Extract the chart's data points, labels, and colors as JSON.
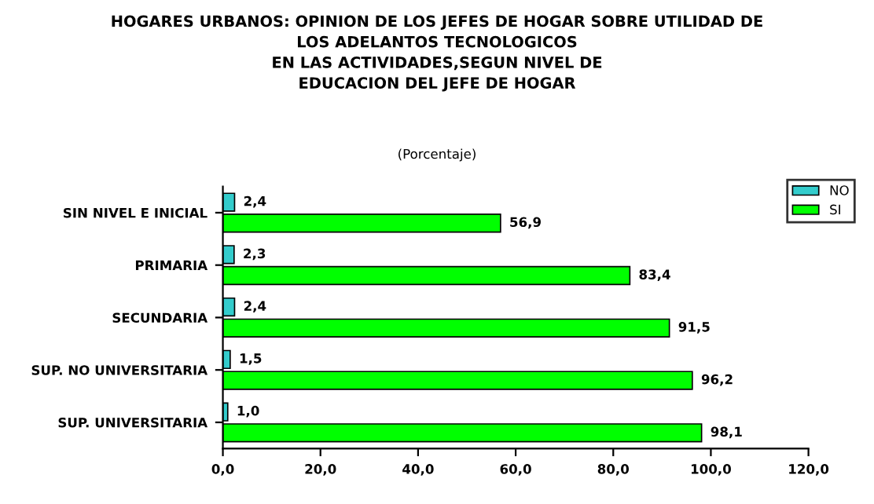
{
  "chart_data": {
    "type": "bar",
    "orientation": "horizontal",
    "title": "HOGARES URBANOS: OPINION DE LOS JEFES DE HOGAR SOBRE UTILIDAD DE\nLOS ADELANTOS TECNOLOGICOS\nEN LAS ACTIVIDADES,SEGUN NIVEL DE\nEDUCACION DEL JEFE DE HOGAR",
    "subtitle": "(Porcentaje)",
    "categories": [
      "SIN NIVEL E INICIAL",
      "PRIMARIA",
      "SECUNDARIA",
      "SUP. NO UNIVERSITARIA",
      "SUP. UNIVERSITARIA"
    ],
    "series": [
      {
        "name": "NO",
        "color": "#33cccc",
        "values": [
          2.4,
          2.3,
          2.4,
          1.5,
          1.0
        ],
        "value_labels": [
          "2,4",
          "2,3",
          "2,4",
          "1,5",
          "1,0"
        ]
      },
      {
        "name": "SI",
        "color": "#00ff00",
        "values": [
          56.9,
          83.4,
          91.5,
          96.2,
          98.1
        ],
        "value_labels": [
          "56,9",
          "83,4",
          "91,5",
          "96,2",
          "98,1"
        ]
      }
    ],
    "xlim": [
      0,
      120
    ],
    "xticks": [
      {
        "value": 0,
        "label": "0,0"
      },
      {
        "value": 20,
        "label": "20,0"
      },
      {
        "value": 40,
        "label": "40,0"
      },
      {
        "value": 60,
        "label": "60,0"
      },
      {
        "value": 80,
        "label": "80,0"
      },
      {
        "value": 100,
        "label": "100,0"
      },
      {
        "value": 120,
        "label": "120,0"
      }
    ],
    "grid": false,
    "legend": "top right"
  }
}
